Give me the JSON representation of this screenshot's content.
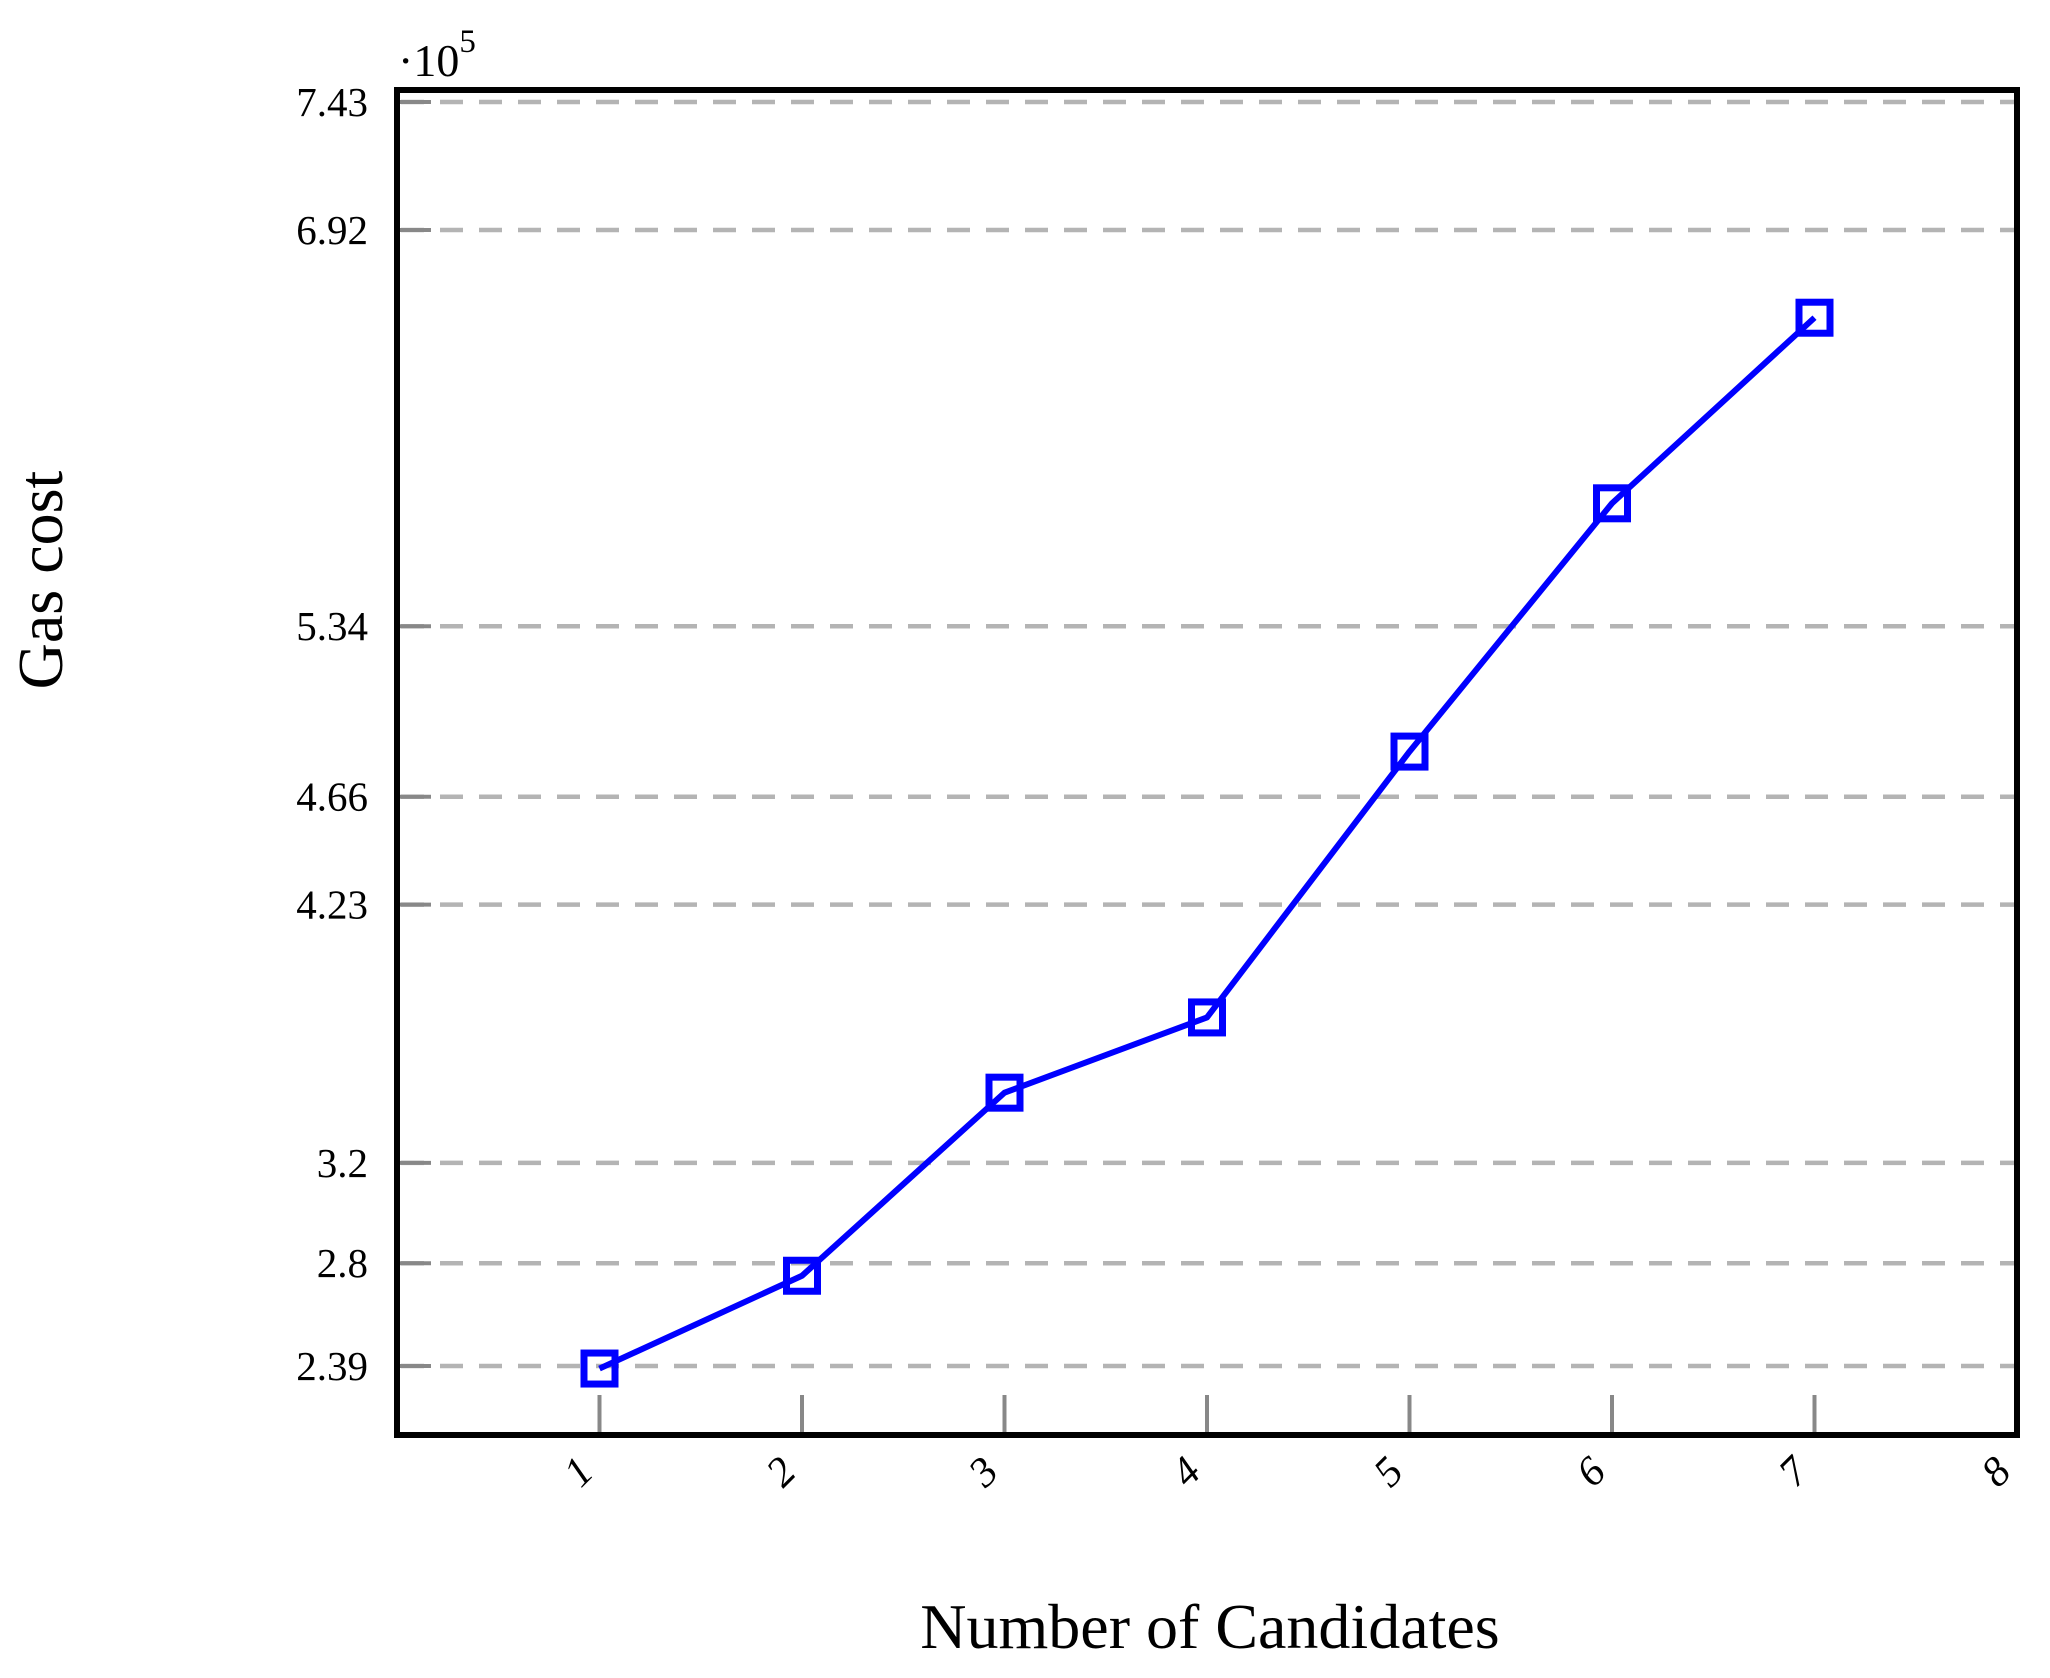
{
  "page": {
    "background": "#ffffff"
  },
  "chart_data": {
    "type": "line",
    "title": "",
    "xlabel": "Number of Candidates",
    "ylabel": "Gas cost",
    "y_axis_multiplier": {
      "base": "·10",
      "exponent": "5"
    },
    "x": [
      1,
      2,
      3,
      4,
      5,
      6,
      7
    ],
    "series": [
      {
        "name": "Gas cost",
        "values_e5": [
          2.38,
          2.75,
          3.48,
          3.78,
          4.84,
          5.83,
          6.57
        ],
        "values_absolute": [
          238000,
          275000,
          348000,
          378000,
          484000,
          583000,
          657000
        ],
        "color": "#0000ff",
        "marker": "open-square",
        "line_width": 6
      }
    ],
    "y_ticks_e5": [
      2.39,
      2.8,
      3.2,
      4.23,
      4.66,
      5.34,
      6.92,
      7.43
    ],
    "y_tick_labels": [
      "2.39",
      "2.8",
      "3.2",
      "4.23",
      "4.66",
      "5.34",
      "6.92",
      "7.43"
    ],
    "x_ticks": [
      1,
      2,
      3,
      4,
      5,
      6,
      7,
      8
    ],
    "x_tick_labels": [
      "1",
      "2",
      "3",
      "4",
      "5",
      "6",
      "7",
      "8"
    ],
    "xlim": [
      0,
      8
    ],
    "ylim_e5": [
      2.115,
      7.478
    ],
    "grid": {
      "axis": "y",
      "style": "dashed",
      "on": true
    },
    "legend": {
      "visible": false,
      "position": "none"
    },
    "colors": {
      "line": "#0000ff",
      "gridline": "#b4b4b4",
      "tick": "#888888",
      "axis_frame": "#000000",
      "text": "#000000"
    }
  }
}
